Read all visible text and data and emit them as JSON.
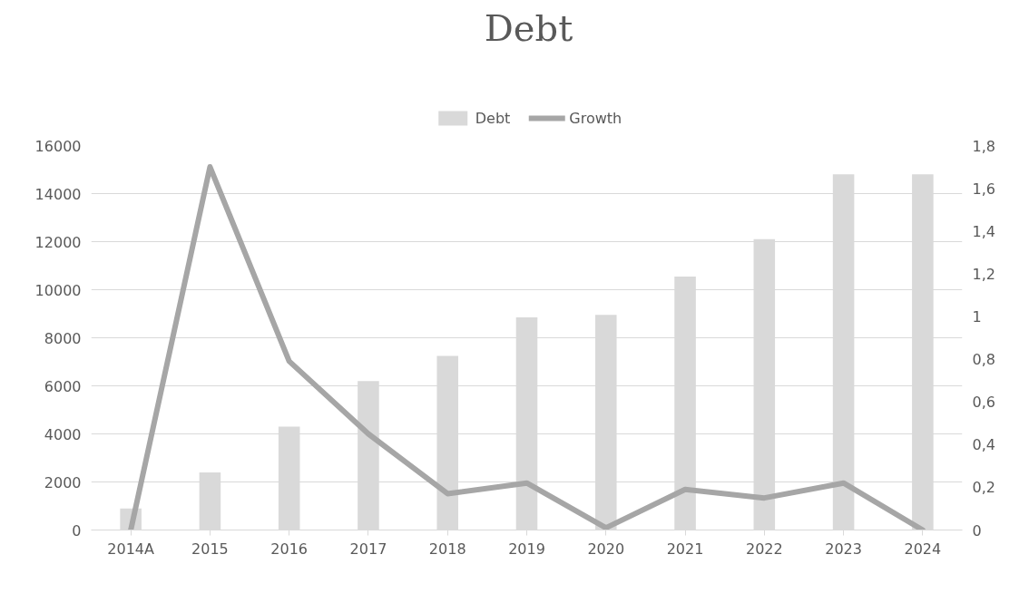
{
  "chart_data": {
    "type": "bar",
    "title": "Debt",
    "categories": [
      "2014A",
      "2015",
      "2016",
      "2017",
      "2018",
      "2019",
      "2020",
      "2021",
      "2022",
      "2023",
      "2024"
    ],
    "series": [
      {
        "name": "Debt",
        "type": "bar",
        "color": "#d9d9d9",
        "values": [
          900,
          2400,
          4300,
          6200,
          7250,
          8850,
          8950,
          10550,
          12100,
          14800,
          14800
        ]
      },
      {
        "name": "Growth",
        "type": "line",
        "axis": "y2",
        "color": "#a6a6a6",
        "values": [
          0,
          1.7,
          0.79,
          0.45,
          0.17,
          0.22,
          0.01,
          0.19,
          0.15,
          0.22,
          0
        ]
      }
    ],
    "ylim": [
      0,
      16000
    ],
    "yticks": [
      0,
      2000,
      4000,
      6000,
      8000,
      10000,
      12000,
      14000,
      16000
    ],
    "y2lim": [
      0,
      1.8
    ],
    "y2ticks": [
      0,
      {
        "value": 0.2,
        "label": "0,2"
      },
      {
        "value": 0.4,
        "label": "0,4"
      },
      {
        "value": 0.6,
        "label": "0,6"
      },
      {
        "value": 0.8,
        "label": "0,8"
      },
      1,
      {
        "value": 1.2,
        "label": "1,2"
      },
      {
        "value": 1.4,
        "label": "1,4"
      },
      {
        "value": 1.6,
        "label": "1,6"
      },
      {
        "value": 1.8,
        "label": "1,8"
      }
    ],
    "grid": "y",
    "legend": "top",
    "line_style": "solid",
    "marker": "none"
  }
}
